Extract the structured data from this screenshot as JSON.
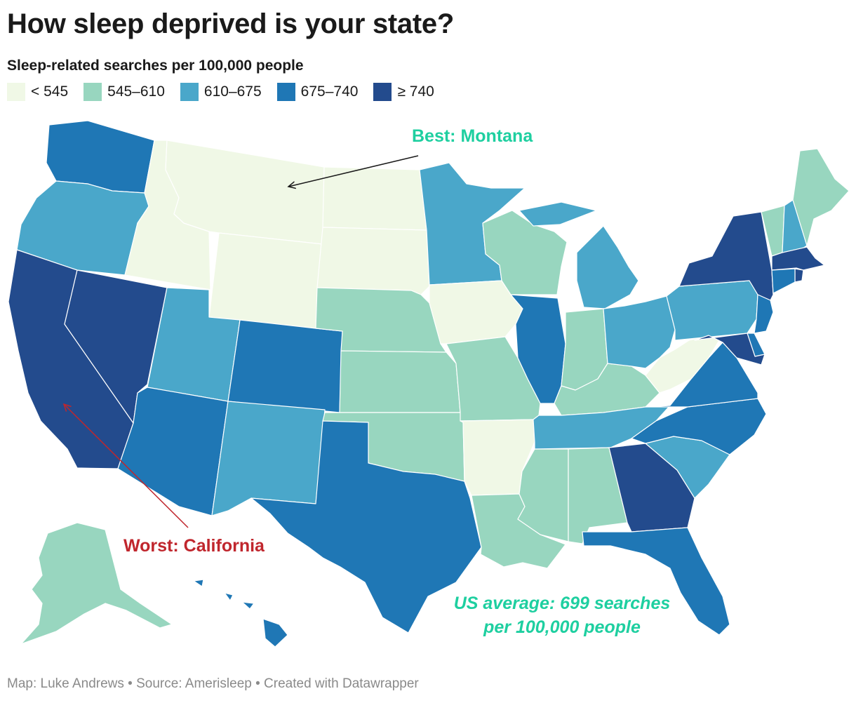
{
  "title": "How sleep deprived is your state?",
  "subtitle": "Sleep-related searches per 100,000 people",
  "legend": [
    {
      "label": "< 545",
      "color": "#f0f8e6"
    },
    {
      "label": "545–610",
      "color": "#98d6bf"
    },
    {
      "label": "610–675",
      "color": "#4aa7ca"
    },
    {
      "label": "675–740",
      "color": "#1f77b5"
    },
    {
      "label": "≥ 740",
      "color": "#234b8d"
    }
  ],
  "annotations": {
    "best": {
      "text": "Best: Montana",
      "color": "#1ecfa0"
    },
    "worst": {
      "text": "Worst: California",
      "color": "#c0262d"
    },
    "average_line1": "US average: 699 searches",
    "average_line2": "per 100,000 people",
    "average_color": "#1ecfa0"
  },
  "footer": "Map: Luke Andrews • Source: Amerisleep • Created with Datawrapper",
  "states": {
    "WA": 3,
    "OR": 2,
    "CA": 4,
    "NV": 4,
    "ID": 0,
    "MT": 0,
    "WY": 0,
    "UT": 2,
    "AZ": 3,
    "CO": 3,
    "NM": 2,
    "ND": 0,
    "SD": 0,
    "NE": 1,
    "KS": 1,
    "OK": 1,
    "TX": 3,
    "MN": 2,
    "IA": 0,
    "MO": 1,
    "AR": 0,
    "LA": 1,
    "WI": 1,
    "IL": 3,
    "MS": 1,
    "MI": 2,
    "IN": 1,
    "KY": 1,
    "TN": 2,
    "AL": 1,
    "GA": 4,
    "FL": 3,
    "SC": 2,
    "NC": 3,
    "VA": 3,
    "WV": 0,
    "OH": 2,
    "PA": 2,
    "NY": 4,
    "VT": 1,
    "NH": 2,
    "ME": 1,
    "MA": 4,
    "RI": 4,
    "CT": 3,
    "NJ": 3,
    "DE": 3,
    "MD": 4,
    "AK": 1,
    "HI": 3
  }
}
